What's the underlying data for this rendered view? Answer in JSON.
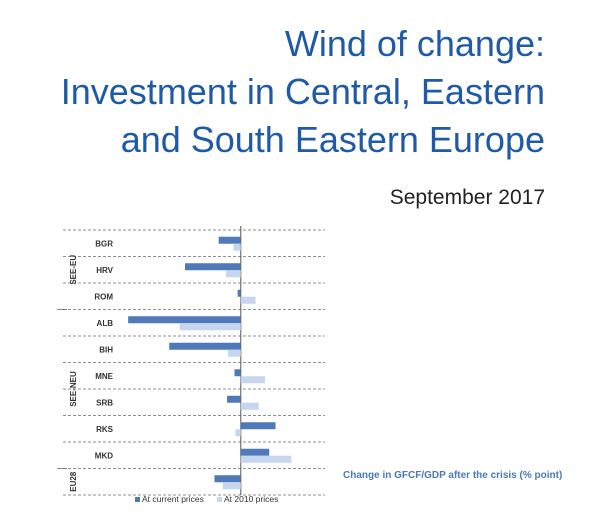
{
  "header": {
    "title_lines": [
      "Wind of change:",
      "Investment in Central, Eastern",
      "and South Eastern Europe"
    ],
    "date": "September 2017"
  },
  "chart_data": {
    "type": "bar",
    "orientation": "horizontal",
    "title": "Change in GFCF/GDP after the crisis (% point)",
    "categories": [
      "BGR",
      "HRV",
      "ROM",
      "ALB",
      "BIH",
      "MNE",
      "SRB",
      "RKS",
      "MKD",
      ""
    ],
    "groups": [
      {
        "name": "SEE-EU",
        "categories": [
          "BGR",
          "HRV",
          "ROM"
        ]
      },
      {
        "name": "SEE-NEU",
        "categories": [
          "ALB",
          "BIH",
          "MNE",
          "SRB",
          "RKS",
          "MKD"
        ]
      },
      {
        "name": "EU28",
        "categories": [
          ""
        ]
      }
    ],
    "series": [
      {
        "name": "At current prices",
        "color": "#4f79b9",
        "values": [
          -2.1,
          -5.3,
          -0.3,
          -10.7,
          -6.8,
          -0.6,
          -1.3,
          3.3,
          2.7,
          -2.5
        ]
      },
      {
        "name": "At 2010 prices",
        "color": "#c5d6ee",
        "values": [
          -0.7,
          -1.4,
          1.4,
          -5.8,
          -1.2,
          2.3,
          1.7,
          -0.5,
          4.8,
          -1.7
        ]
      }
    ],
    "xlim": [
      -11,
      8
    ],
    "grid": false,
    "legend_position": "bottom"
  }
}
